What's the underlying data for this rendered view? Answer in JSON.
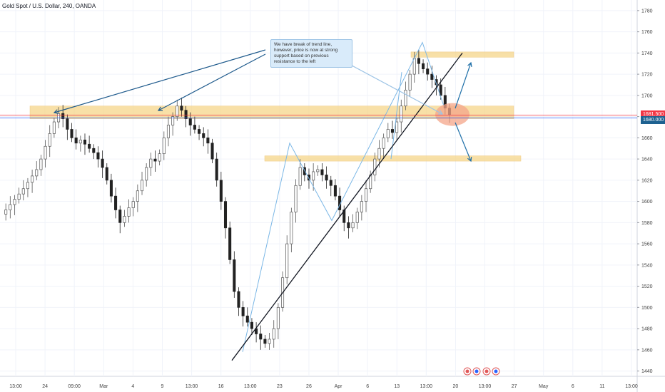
{
  "chart_data": {
    "type": "candlestick",
    "title": "Gold Spot / U.S. Dollar, 240, OANDA",
    "ylim": [
      1435,
      1790
    ],
    "y_ticks": [
      1440,
      1460,
      1480,
      1500,
      1520,
      1540,
      1560,
      1580,
      1600,
      1620,
      1640,
      1660,
      1680,
      1700,
      1720,
      1740,
      1760,
      1780
    ],
    "x_ticks": [
      "13:00",
      "24",
      "09:00",
      "Mar",
      "4",
      "9",
      "13:00",
      "16",
      "13:00",
      "23",
      "26",
      "Apr",
      "6",
      "13",
      "13:00",
      "20",
      "13:00",
      "27",
      "May",
      "6",
      "11",
      "13:00"
    ],
    "current_price_labels": [
      "1681.500",
      "1680.000"
    ],
    "price_line_colors": {
      "bid": "#f23645",
      "ask": "#2962ff",
      "ask_tag": "#1e6190"
    },
    "candle_colors": {
      "up": "#555555",
      "down": "#222222"
    },
    "series": [
      {
        "name": "price",
        "values": [
          1588,
          1592,
          1597,
          1602,
          1607,
          1612,
          1618,
          1624,
          1630,
          1640,
          1652,
          1664,
          1675,
          1683,
          1678,
          1668,
          1660,
          1655,
          1658,
          1654,
          1650,
          1646,
          1640,
          1632,
          1620,
          1605,
          1592,
          1580,
          1586,
          1594,
          1600,
          1610,
          1620,
          1632,
          1640,
          1638,
          1645,
          1660,
          1672,
          1680,
          1690,
          1686,
          1678,
          1672,
          1668,
          1664,
          1660,
          1655,
          1640,
          1620,
          1600,
          1575,
          1545,
          1515,
          1500,
          1492,
          1486,
          1480,
          1475,
          1470,
          1466,
          1470,
          1480,
          1500,
          1528,
          1560,
          1590,
          1615,
          1632,
          1625,
          1620,
          1628,
          1630,
          1625,
          1620,
          1615,
          1605,
          1592,
          1580,
          1575,
          1580,
          1590,
          1600,
          1612,
          1625,
          1640,
          1650,
          1660,
          1668,
          1665,
          1675,
          1690,
          1705,
          1720,
          1735,
          1730,
          1725,
          1720,
          1715,
          1710,
          1700,
          1688,
          1682
        ]
      }
    ],
    "drawings": {
      "horizontal_zones": [
        [
          1678,
          1690
        ],
        [
          1736,
          1741
        ],
        [
          1638,
          1643
        ]
      ],
      "zigzag_1": [
        1458,
        1655,
        1582,
        1750,
        1690
      ],
      "zigzag_2": [
        1640,
        1722
      ],
      "trendline": [
        1450,
        1740
      ]
    },
    "annotation": "We have break of trend line, however, price is now at strong support based on previous resistance to the left",
    "grid": true,
    "legend_position": "top-left"
  }
}
